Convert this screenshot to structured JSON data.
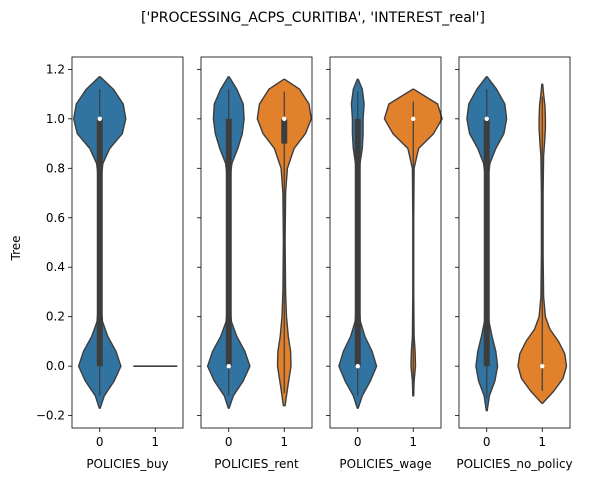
{
  "chart_data": {
    "type": "violin",
    "title": "['PROCESSING_ACPS_CURITIBA', 'INTEREST_real']",
    "ylabel": "Tree",
    "ylim": [
      -0.25,
      1.25
    ],
    "yticks": [
      "1.2",
      "1.0",
      "0.8",
      "0.6",
      "0.4",
      "0.2",
      "0.0",
      "−0.2"
    ],
    "ytick_values": [
      1.2,
      1.0,
      0.8,
      0.6,
      0.4,
      0.2,
      0.0,
      -0.2
    ],
    "colors": {
      "0": "#3274a1",
      "1": "#e1812c",
      "inner": "#3d3d3d",
      "edge": "#3d3d3d"
    },
    "panels": [
      {
        "xlabel": "POLICIES_buy",
        "categories": [
          "0",
          "1"
        ],
        "violins": [
          {
            "category": "0",
            "range": [
              -0.17,
              1.17
            ],
            "median": 1.0,
            "q1": 0.0,
            "q3": 1.0,
            "density": [
              [
                -0.17,
                0.01
              ],
              [
                -0.12,
                0.1
              ],
              [
                -0.06,
                0.32
              ],
              [
                0.0,
                0.47
              ],
              [
                0.06,
                0.36
              ],
              [
                0.12,
                0.18
              ],
              [
                0.18,
                0.06
              ],
              [
                0.24,
                0.03
              ],
              [
                0.4,
                0.02
              ],
              [
                0.6,
                0.02
              ],
              [
                0.76,
                0.03
              ],
              [
                0.82,
                0.07
              ],
              [
                0.88,
                0.22
              ],
              [
                0.94,
                0.5
              ],
              [
                1.0,
                0.58
              ],
              [
                1.06,
                0.52
              ],
              [
                1.12,
                0.3
              ],
              [
                1.17,
                0.01
              ]
            ]
          },
          {
            "category": "1",
            "range": [
              0.0,
              0.0
            ],
            "median": 0.0,
            "q1": 0.0,
            "q3": 0.0,
            "flat": true,
            "density": []
          }
        ]
      },
      {
        "xlabel": "POLICIES_rent",
        "categories": [
          "0",
          "1"
        ],
        "violins": [
          {
            "category": "0",
            "range": [
              -0.17,
              1.17
            ],
            "median": 0.0,
            "q1": 0.0,
            "q3": 1.0,
            "density": [
              [
                -0.17,
                0.01
              ],
              [
                -0.12,
                0.1
              ],
              [
                -0.06,
                0.32
              ],
              [
                0.0,
                0.47
              ],
              [
                0.06,
                0.36
              ],
              [
                0.12,
                0.18
              ],
              [
                0.18,
                0.06
              ],
              [
                0.24,
                0.03
              ],
              [
                0.4,
                0.02
              ],
              [
                0.6,
                0.02
              ],
              [
                0.76,
                0.03
              ],
              [
                0.82,
                0.07
              ],
              [
                0.88,
                0.2
              ],
              [
                0.94,
                0.3
              ],
              [
                1.0,
                0.34
              ],
              [
                1.06,
                0.32
              ],
              [
                1.12,
                0.18
              ],
              [
                1.17,
                0.01
              ]
            ]
          },
          {
            "category": "1",
            "range": [
              -0.16,
              1.16
            ],
            "median": 1.0,
            "q1": 0.9,
            "q3": 1.0,
            "density": [
              [
                -0.16,
                0.02
              ],
              [
                -0.08,
                0.08
              ],
              [
                0.0,
                0.15
              ],
              [
                0.06,
                0.14
              ],
              [
                0.12,
                0.09
              ],
              [
                0.2,
                0.05
              ],
              [
                0.3,
                0.03
              ],
              [
                0.5,
                0.02
              ],
              [
                0.7,
                0.03
              ],
              [
                0.8,
                0.07
              ],
              [
                0.88,
                0.22
              ],
              [
                0.94,
                0.47
              ],
              [
                1.0,
                0.6
              ],
              [
                1.06,
                0.55
              ],
              [
                1.12,
                0.34
              ],
              [
                1.16,
                0.01
              ]
            ]
          }
        ]
      },
      {
        "xlabel": "POLICIES_wage",
        "categories": [
          "0",
          "1"
        ],
        "violins": [
          {
            "category": "0",
            "range": [
              -0.17,
              1.16
            ],
            "median": 0.0,
            "q1": 0.0,
            "q3": 1.0,
            "density": [
              [
                -0.17,
                0.01
              ],
              [
                -0.12,
                0.1
              ],
              [
                -0.06,
                0.28
              ],
              [
                0.0,
                0.42
              ],
              [
                0.06,
                0.32
              ],
              [
                0.12,
                0.16
              ],
              [
                0.18,
                0.06
              ],
              [
                0.24,
                0.03
              ],
              [
                0.4,
                0.02
              ],
              [
                0.6,
                0.02
              ],
              [
                0.76,
                0.03
              ],
              [
                0.82,
                0.05
              ],
              [
                0.88,
                0.1
              ],
              [
                0.94,
                0.12
              ],
              [
                1.0,
                0.12
              ],
              [
                1.06,
                0.14
              ],
              [
                1.12,
                0.1
              ],
              [
                1.16,
                0.01
              ]
            ]
          },
          {
            "category": "1",
            "range": [
              -0.12,
              1.12
            ],
            "median": 1.0,
            "q1": 1.0,
            "q3": 1.0,
            "density": [
              [
                -0.12,
                0.01
              ],
              [
                -0.06,
                0.02
              ],
              [
                0.0,
                0.05
              ],
              [
                0.06,
                0.04
              ],
              [
                0.12,
                0.02
              ],
              [
                0.3,
                0.01
              ],
              [
                0.6,
                0.01
              ],
              [
                0.8,
                0.02
              ],
              [
                0.88,
                0.12
              ],
              [
                0.94,
                0.45
              ],
              [
                1.0,
                0.64
              ],
              [
                1.06,
                0.54
              ],
              [
                1.12,
                0.01
              ]
            ]
          }
        ]
      },
      {
        "xlabel": "POLICIES_no_policy",
        "categories": [
          "0",
          "1"
        ],
        "violins": [
          {
            "category": "0",
            "range": [
              -0.18,
              1.17
            ],
            "median": 1.0,
            "q1": 0.0,
            "q3": 1.0,
            "density": [
              [
                -0.18,
                0.01
              ],
              [
                -0.12,
                0.06
              ],
              [
                -0.06,
                0.18
              ],
              [
                0.0,
                0.24
              ],
              [
                0.06,
                0.2
              ],
              [
                0.12,
                0.12
              ],
              [
                0.18,
                0.05
              ],
              [
                0.24,
                0.03
              ],
              [
                0.4,
                0.02
              ],
              [
                0.6,
                0.02
              ],
              [
                0.76,
                0.03
              ],
              [
                0.82,
                0.07
              ],
              [
                0.88,
                0.2
              ],
              [
                0.94,
                0.38
              ],
              [
                1.0,
                0.44
              ],
              [
                1.06,
                0.4
              ],
              [
                1.12,
                0.22
              ],
              [
                1.17,
                0.01
              ]
            ]
          },
          {
            "category": "1",
            "range": [
              -0.15,
              1.14
            ],
            "median": 0.0,
            "q1": 0.0,
            "q3": 0.0,
            "density": [
              [
                -0.15,
                0.01
              ],
              [
                -0.1,
                0.26
              ],
              [
                -0.05,
                0.46
              ],
              [
                0.0,
                0.54
              ],
              [
                0.05,
                0.5
              ],
              [
                0.1,
                0.36
              ],
              [
                0.15,
                0.17
              ],
              [
                0.2,
                0.07
              ],
              [
                0.28,
                0.03
              ],
              [
                0.45,
                0.02
              ],
              [
                0.7,
                0.02
              ],
              [
                0.85,
                0.03
              ],
              [
                0.9,
                0.05
              ],
              [
                0.96,
                0.07
              ],
              [
                1.0,
                0.07
              ],
              [
                1.05,
                0.06
              ],
              [
                1.1,
                0.03
              ],
              [
                1.14,
                0.01
              ]
            ]
          }
        ]
      }
    ]
  }
}
